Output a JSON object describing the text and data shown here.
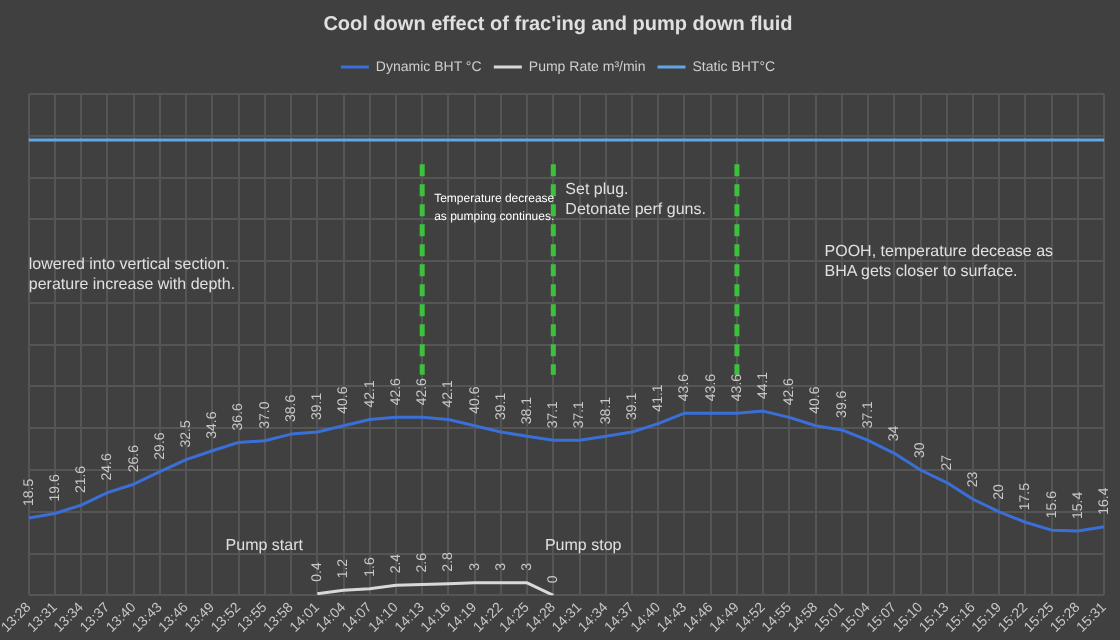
{
  "chart_data": {
    "type": "line",
    "title": "Cool down effect of frac'ing and pump down fluid",
    "categories": [
      "13:28",
      "13:31",
      "13:34",
      "13:37",
      "13:40",
      "13:43",
      "13:46",
      "13:49",
      "13:52",
      "13:55",
      "13:58",
      "14:01",
      "14:04",
      "14:07",
      "14:10",
      "14:13",
      "14:16",
      "14:19",
      "14:22",
      "14:25",
      "14:28",
      "14:31",
      "14:34",
      "14:37",
      "14:40",
      "14:43",
      "14:46",
      "14:49",
      "14:52",
      "14:55",
      "14:58",
      "15:01",
      "15:04",
      "15:07",
      "15:10",
      "15:13",
      "15:16",
      "15:19",
      "15:22",
      "15:25",
      "15:28",
      "15:31"
    ],
    "series": [
      {
        "name": "Dynamic BHT °C",
        "color": "#3a6fd8",
        "values": [
          18.5,
          19.6,
          21.6,
          24.6,
          26.6,
          29.6,
          32.5,
          34.6,
          36.6,
          37.0,
          38.6,
          39.1,
          40.6,
          42.1,
          42.6,
          42.6,
          42.1,
          40.6,
          39.1,
          38.1,
          37.1,
          37.1,
          38.1,
          39.1,
          41.1,
          43.6,
          43.6,
          43.6,
          44.1,
          42.6,
          40.6,
          39.6,
          37.1,
          34,
          30,
          27,
          23,
          20,
          17.5,
          15.6,
          15.4,
          16.4
        ],
        "value_labels": [
          "18.5",
          "19.6",
          "21.6",
          "24.6",
          "26.6",
          "29.6",
          "32.5",
          "34.6",
          "36.6",
          "37.0",
          "38.6",
          "39.1",
          "40.6",
          "42.1",
          "42.6",
          "42.6",
          "42.1",
          "40.6",
          "39.1",
          "38.1",
          "37.1",
          "37.1",
          "38.1",
          "39.1",
          "41.1",
          "43.6",
          "43.6",
          "43.6",
          "44.1",
          "42.6",
          "40.6",
          "39.6",
          "37.1",
          "34",
          "30",
          "27",
          "23",
          "20",
          "17.5",
          "15.6",
          "15.4",
          "16.4"
        ]
      },
      {
        "name": "Pump Rate m³/min",
        "color": "#d9d9d9",
        "values": [
          null,
          null,
          null,
          null,
          null,
          null,
          null,
          null,
          null,
          null,
          null,
          0.4,
          1.2,
          1.6,
          2.4,
          2.6,
          2.8,
          3,
          3,
          3,
          0,
          null,
          null,
          null,
          null,
          null,
          null,
          null,
          null,
          null,
          null,
          null,
          null,
          null,
          null,
          null,
          null,
          null,
          null,
          null,
          null,
          null
        ],
        "value_labels": [
          null,
          null,
          null,
          null,
          null,
          null,
          null,
          null,
          null,
          null,
          null,
          "0.4",
          "1.2",
          "1.6",
          "2.4",
          "2.6",
          "2.8",
          "3",
          "3",
          "3",
          "0",
          null,
          null,
          null,
          null,
          null,
          null,
          null,
          null,
          null,
          null,
          null,
          null,
          null,
          null,
          null,
          null,
          null,
          null,
          null,
          null,
          null
        ]
      },
      {
        "name": "Static BHT°C",
        "color": "#5fa8e8",
        "values": [
          109,
          109,
          109,
          109,
          109,
          109,
          109,
          109,
          109,
          109,
          109,
          109,
          109,
          109,
          109,
          109,
          109,
          109,
          109,
          109,
          109,
          109,
          109,
          109,
          109,
          109,
          109,
          109,
          109,
          109,
          109,
          109,
          109,
          109,
          109,
          109,
          109,
          109,
          109,
          109,
          109,
          109
        ]
      }
    ],
    "ylim": [
      0,
      120
    ],
    "yticks": [
      {
        "value": 0,
        "label": null
      },
      {
        "value": 10,
        "label": null
      },
      {
        "value": 20,
        "label": null
      },
      {
        "value": 30,
        "label": null
      },
      {
        "value": 40,
        "label": null
      },
      {
        "value": 50,
        "label": null
      },
      {
        "value": 60,
        "label": null
      },
      {
        "value": 70,
        "label": null
      },
      {
        "value": 80,
        "label": null
      },
      {
        "value": 90,
        "label": null
      },
      {
        "value": 100,
        "label": null
      },
      {
        "value": 110,
        "label": null
      },
      {
        "value": 120,
        "label": null
      }
    ],
    "tick_labels": "x",
    "grid": true,
    "legend": "top",
    "marker": "none",
    "line_style": "solid",
    "ref_lines": [
      {
        "axis": "x",
        "value": "14:13",
        "color": "#3cc13c",
        "line_style": "dashed"
      },
      {
        "axis": "x",
        "value": "14:28",
        "color": "#3cc13c",
        "line_style": "dashed"
      },
      {
        "axis": "x",
        "value": "14:49",
        "color": "#3cc13c",
        "line_style": "dashed"
      }
    ],
    "annotations": [
      "lowered into vertical section.\nperature increase with depth.",
      {
        "text": "Temperature decrease\nas pumping continues.",
        "x": "14:13",
        "y": 95
      },
      {
        "text": "Set plug.\nDetonate perf guns.",
        "x": "14:28",
        "y": 97
      },
      "POOH, temperature decease as\nBHA gets closer to surface.",
      "Pump start",
      "Pump stop"
    ]
  }
}
